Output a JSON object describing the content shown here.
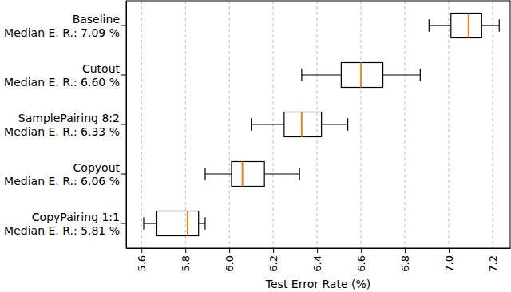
{
  "chart_data": {
    "type": "box",
    "orientation": "horizontal",
    "x_label": "Test Error Rate (%)",
    "categories": [
      "Baseline",
      "Cutout",
      "SamplePairing 8:2",
      "Copyout",
      "CopyPairing 1:1"
    ],
    "median_labels": [
      "Median E. R.: 7.09 %",
      "Median E. R.: 6.60 %",
      "Median E. R.: 6.33 %",
      "Median E. R.: 6.06 %",
      "Median E. R.: 5.81 %"
    ],
    "min": [
      6.91,
      6.33,
      6.1,
      5.89,
      5.61
    ],
    "q1": [
      7.01,
      6.51,
      6.25,
      6.01,
      5.67
    ],
    "median": [
      7.09,
      6.6,
      6.33,
      6.06,
      5.81
    ],
    "q3": [
      7.15,
      6.7,
      6.42,
      6.16,
      5.86
    ],
    "max": [
      7.23,
      6.87,
      6.54,
      6.32,
      5.89
    ],
    "color": "#ff7f0e",
    "xlim": [
      5.53,
      7.28
    ],
    "xticks": [
      5.6,
      5.8,
      {
        "value": 6,
        "label": "6.0"
      },
      6.2,
      6.4,
      6.6,
      6.8,
      {
        "value": 7,
        "label": "7.0"
      },
      7.2
    ],
    "grid": true
  }
}
